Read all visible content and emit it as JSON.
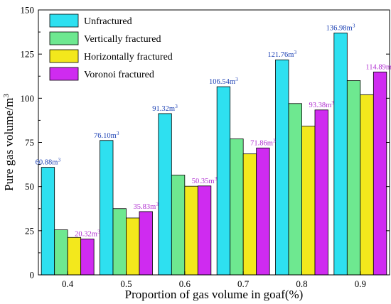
{
  "chart_data": {
    "type": "bar",
    "title": "",
    "xlabel": "Proportion of gas volume in goaf(%)",
    "ylabel": "Pure gas volume/m",
    "ylabel_sup": "3",
    "ylim": [
      0,
      150
    ],
    "yticks": [
      0,
      25,
      50,
      75,
      100,
      125,
      150
    ],
    "grid": false,
    "legend_position": "top-left",
    "categories": [
      "0.4",
      "0.5",
      "0.6",
      "0.7",
      "0.8",
      "0.9"
    ],
    "series": [
      {
        "name": "Unfractured",
        "color": "#2ee0f0",
        "label_color": "#1a3fb3",
        "values": [
          60.88,
          76.1,
          91.32,
          106.54,
          121.76,
          136.98
        ],
        "labels": [
          "60.88m",
          "76.10m",
          "91.32m",
          "106.54m",
          "121.76m",
          "136.98m"
        ]
      },
      {
        "name": "Vertically fractured",
        "color": "#6ee890",
        "values": [
          25.5,
          37.5,
          56.5,
          77,
          97,
          110
        ]
      },
      {
        "name": "Horizontally fractured",
        "color": "#f3e81c",
        "values": [
          21.2,
          32.2,
          50.2,
          68.5,
          84.2,
          102
        ]
      },
      {
        "name": "Voronoi fractured",
        "color": "#cf2bf0",
        "label_color": "#b02fd0",
        "values": [
          20.32,
          35.83,
          50.35,
          71.86,
          93.38,
          114.89
        ],
        "labels": [
          "20.32m",
          "35.83m",
          "50.35m",
          "71.86m",
          "93.38m",
          "114.89m"
        ]
      }
    ],
    "label_unit_sup": "3"
  }
}
